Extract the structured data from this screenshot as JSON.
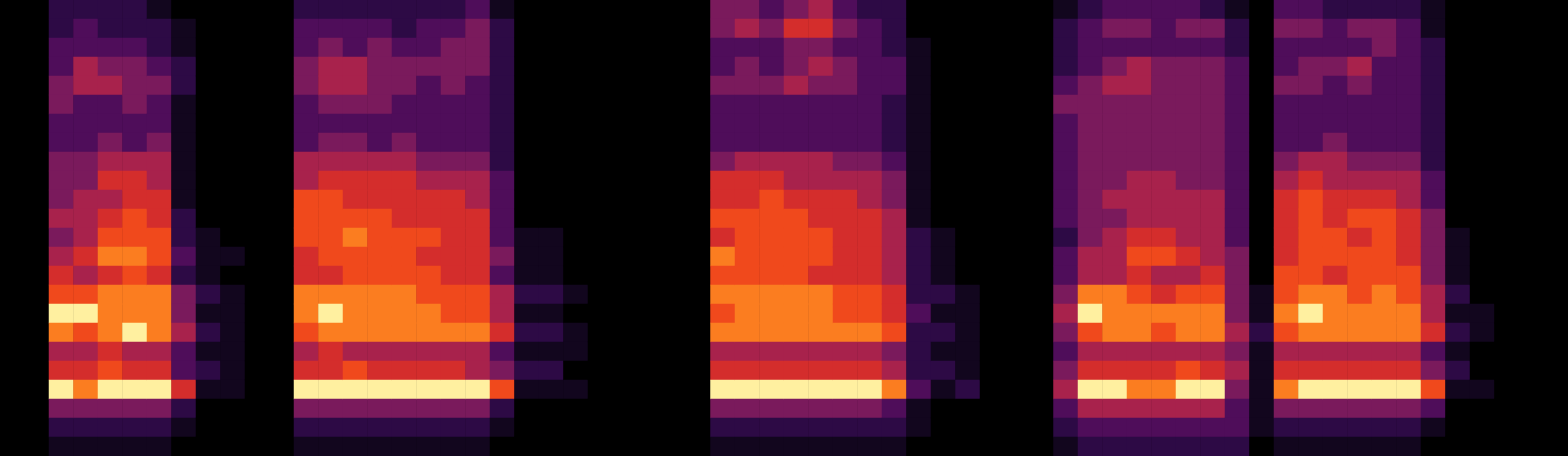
{
  "chart_data": {
    "type": "heatmap",
    "tick_labels": false,
    "grid": false,
    "color_range": [
      0,
      9
    ],
    "cells": [
      [
        0,
        0,
        0,
        0,
        0,
        0,
        0,
        0,
        0,
        0,
        0,
        0,
        0,
        0,
        0,
        0,
        0,
        0,
        0,
        0,
        0,
        0,
        0,
        0
      ],
      [
        0,
        0,
        0,
        0,
        0,
        0,
        0,
        0,
        0,
        0,
        0,
        0,
        0,
        0,
        0,
        0,
        0,
        0,
        0,
        0,
        0,
        0,
        0,
        0
      ],
      [
        2,
        2,
        3,
        3,
        4,
        4,
        3,
        3,
        4,
        4,
        4,
        5,
        4,
        5,
        6,
        7,
        9,
        8,
        5,
        6,
        9,
        4,
        2,
        1
      ],
      [
        2,
        3,
        3,
        5,
        5,
        3,
        3,
        3,
        4,
        4,
        5,
        5,
        5,
        6,
        5,
        7,
        9,
        7,
        5,
        6,
        8,
        4,
        2,
        1
      ],
      [
        2,
        2,
        3,
        4,
        5,
        3,
        3,
        4,
        5,
        6,
        5,
        6,
        7,
        8,
        6,
        8,
        8,
        8,
        6,
        7,
        9,
        4,
        2,
        1
      ],
      [
        2,
        2,
        3,
        4,
        4,
        4,
        3,
        3,
        5,
        6,
        6,
        7,
        7,
        8,
        7,
        8,
        8,
        9,
        5,
        6,
        9,
        4,
        2,
        1
      ],
      [
        1,
        2,
        2,
        3,
        4,
        3,
        3,
        4,
        5,
        5,
        6,
        6,
        7,
        7,
        6,
        8,
        8,
        8,
        5,
        6,
        9,
        4,
        2,
        1
      ],
      [
        0,
        1,
        1,
        2,
        2,
        1,
        1,
        1,
        1,
        1,
        1,
        2,
        2,
        3,
        2,
        4,
        4,
        5,
        3,
        3,
        6,
        2,
        1,
        0
      ],
      [
        0,
        0,
        0,
        0,
        0,
        0,
        0,
        0,
        0,
        0,
        0,
        0,
        1,
        1,
        1,
        2,
        1,
        2,
        1,
        2,
        1,
        0,
        0,
        0
      ],
      [
        0,
        0,
        0,
        0,
        0,
        0,
        0,
        0,
        0,
        0,
        0,
        0,
        0,
        1,
        0,
        1,
        1,
        1,
        1,
        1,
        1,
        0,
        0,
        0
      ],
      [
        0,
        0,
        0,
        0,
        0,
        0,
        0,
        0,
        0,
        0,
        0,
        0,
        0,
        0,
        0,
        0,
        0,
        0,
        0,
        0,
        0,
        0,
        0,
        0
      ],
      [
        0,
        0,
        0,
        0,
        0,
        0,
        0,
        0,
        0,
        0,
        0,
        0,
        0,
        0,
        0,
        0,
        0,
        0,
        0,
        0,
        0,
        0,
        0,
        0
      ],
      [
        2,
        3,
        3,
        4,
        4,
        3,
        3,
        3,
        5,
        5,
        7,
        7,
        7,
        6,
        6,
        8,
        8,
        7,
        5,
        6,
        9,
        4,
        2,
        1
      ],
      [
        2,
        3,
        4,
        5,
        5,
        4,
        3,
        4,
        5,
        6,
        7,
        7,
        7,
        7,
        6,
        8,
        9,
        8,
        6,
        6,
        9,
        4,
        2,
        1
      ],
      [
        2,
        3,
        3,
        5,
        5,
        4,
        3,
        4,
        5,
        6,
        6,
        7,
        8,
        7,
        7,
        8,
        8,
        8,
        5,
        7,
        9,
        4,
        2,
        1
      ],
      [
        2,
        3,
        4,
        4,
        4,
        4,
        3,
        3,
        5,
        6,
        6,
        7,
        7,
        7,
        7,
        8,
        8,
        8,
        5,
        6,
        9,
        4,
        2,
        1
      ],
      [
        2,
        2,
        3,
        4,
        4,
        3,
        3,
        4,
        5,
        6,
        6,
        6,
        7,
        7,
        7,
        8,
        8,
        8,
        5,
        6,
        9,
        4,
        2,
        1
      ],
      [
        2,
        3,
        3,
        4,
        3,
        3,
        3,
        3,
        4,
        5,
        6,
        6,
        7,
        6,
        7,
        7,
        8,
        8,
        5,
        6,
        9,
        4,
        2,
        1
      ],
      [
        2,
        3,
        4,
        4,
        4,
        3,
        3,
        3,
        4,
        5,
        6,
        6,
        6,
        6,
        6,
        7,
        7,
        8,
        5,
        6,
        9,
        4,
        2,
        1
      ],
      [
        3,
        4,
        4,
        4,
        3,
        3,
        3,
        3,
        4,
        5,
        5,
        6,
        6,
        6,
        6,
        7,
        7,
        8,
        5,
        5,
        9,
        4,
        2,
        1
      ],
      [
        1,
        2,
        2,
        2,
        2,
        2,
        2,
        2,
        2,
        3,
        3,
        3,
        3,
        4,
        3,
        5,
        5,
        6,
        3,
        4,
        7,
        2,
        1,
        0
      ],
      [
        0,
        0,
        0,
        0,
        0,
        0,
        0,
        0,
        0,
        0,
        0,
        0,
        1,
        1,
        1,
        2,
        1,
        2,
        1,
        2,
        1,
        0,
        0,
        0
      ],
      [
        0,
        0,
        0,
        0,
        0,
        0,
        0,
        0,
        0,
        0,
        0,
        0,
        1,
        1,
        1,
        2,
        1,
        2,
        1,
        2,
        1,
        0,
        0,
        0
      ],
      [
        0,
        0,
        0,
        0,
        0,
        0,
        0,
        0,
        0,
        0,
        0,
        0,
        0,
        0,
        0,
        1,
        0,
        1,
        1,
        0,
        1,
        0,
        0,
        0
      ],
      [
        0,
        0,
        0,
        0,
        0,
        0,
        0,
        0,
        0,
        0,
        0,
        0,
        0,
        0,
        0,
        0,
        0,
        0,
        0,
        0,
        0,
        0,
        0,
        0
      ],
      [
        0,
        0,
        0,
        0,
        0,
        0,
        0,
        0,
        0,
        0,
        0,
        0,
        0,
        0,
        0,
        0,
        0,
        0,
        0,
        0,
        0,
        0,
        0,
        0
      ],
      [
        0,
        0,
        0,
        0,
        0,
        0,
        0,
        0,
        0,
        0,
        0,
        0,
        0,
        0,
        0,
        0,
        0,
        0,
        0,
        0,
        0,
        0,
        0,
        0
      ],
      [
        0,
        0,
        0,
        0,
        0,
        0,
        0,
        0,
        0,
        0,
        0,
        0,
        0,
        0,
        0,
        0,
        0,
        0,
        0,
        0,
        0,
        0,
        0,
        0
      ],
      [
        0,
        0,
        0,
        0,
        0,
        0,
        0,
        0,
        0,
        0,
        0,
        0,
        0,
        0,
        0,
        0,
        0,
        0,
        0,
        0,
        0,
        0,
        0,
        0
      ],
      [
        4,
        4,
        3,
        3,
        4,
        3,
        3,
        3,
        4,
        6,
        6,
        7,
        6,
        8,
        7,
        8,
        7,
        8,
        5,
        6,
        9,
        4,
        2,
        1
      ],
      [
        4,
        5,
        3,
        4,
        4,
        3,
        3,
        3,
        5,
        6,
        6,
        7,
        7,
        7,
        7,
        8,
        8,
        8,
        5,
        6,
        9,
        4,
        2,
        1
      ],
      [
        3,
        4,
        3,
        3,
        4,
        3,
        3,
        3,
        5,
        6,
        7,
        7,
        7,
        7,
        7,
        8,
        8,
        8,
        5,
        6,
        9,
        4,
        2,
        1
      ],
      [
        4,
        6,
        4,
        4,
        5,
        3,
        3,
        3,
        5,
        5,
        6,
        7,
        7,
        7,
        7,
        8,
        8,
        8,
        5,
        6,
        9,
        4,
        2,
        1
      ],
      [
        5,
        6,
        4,
        5,
        4,
        3,
        3,
        3,
        5,
        5,
        6,
        6,
        7,
        7,
        6,
        8,
        8,
        8,
        5,
        6,
        9,
        4,
        2,
        1
      ],
      [
        3,
        4,
        3,
        4,
        4,
        3,
        3,
        3,
        4,
        5,
        6,
        6,
        6,
        6,
        6,
        7,
        7,
        8,
        5,
        6,
        9,
        4,
        2,
        1
      ],
      [
        2,
        3,
        3,
        3,
        3,
        3,
        3,
        3,
        4,
        5,
        5,
        6,
        6,
        6,
        6,
        7,
        7,
        8,
        5,
        6,
        9,
        4,
        2,
        1
      ],
      [
        2,
        2,
        2,
        3,
        3,
        2,
        2,
        2,
        3,
        4,
        4,
        5,
        5,
        5,
        5,
        6,
        6,
        7,
        4,
        5,
        8,
        3,
        2,
        1
      ],
      [
        0,
        0,
        1,
        1,
        1,
        1,
        1,
        1,
        1,
        1,
        1,
        1,
        2,
        2,
        2,
        2,
        3,
        2,
        2,
        2,
        3,
        1,
        1,
        0
      ],
      [
        0,
        0,
        0,
        0,
        0,
        0,
        0,
        0,
        0,
        0,
        0,
        0,
        1,
        1,
        1,
        2,
        1,
        2,
        1,
        2,
        1,
        0,
        0,
        0
      ],
      [
        0,
        0,
        0,
        0,
        0,
        0,
        0,
        0,
        0,
        0,
        0,
        0,
        0,
        0,
        0,
        1,
        1,
        1,
        1,
        1,
        2,
        0,
        0,
        0
      ],
      [
        0,
        0,
        0,
        0,
        0,
        0,
        0,
        0,
        0,
        0,
        0,
        0,
        0,
        0,
        0,
        0,
        0,
        0,
        0,
        0,
        0,
        0,
        0,
        0
      ],
      [
        0,
        0,
        0,
        0,
        0,
        0,
        0,
        0,
        0,
        0,
        0,
        0,
        0,
        0,
        0,
        0,
        0,
        0,
        0,
        0,
        0,
        0,
        0,
        0
      ],
      [
        0,
        0,
        0,
        0,
        0,
        0,
        0,
        0,
        0,
        0,
        0,
        0,
        0,
        0,
        0,
        0,
        0,
        0,
        0,
        0,
        0,
        0,
        0,
        0
      ],
      [
        1,
        2,
        2,
        2,
        3,
        4,
        3,
        3,
        3,
        3,
        3,
        3,
        2,
        3,
        3,
        4,
        5,
        4,
        3,
        4,
        5,
        3,
        2,
        1
      ],
      [
        2,
        3,
        3,
        3,
        4,
        4,
        4,
        4,
        4,
        4,
        4,
        4,
        4,
        5,
        5,
        8,
        9,
        7,
        5,
        6,
        9,
        5,
        3,
        2
      ],
      [
        3,
        4,
        3,
        4,
        5,
        4,
        4,
        4,
        4,
        4,
        5,
        4,
        5,
        5,
        5,
        8,
        8,
        8,
        5,
        6,
        9,
        5,
        3,
        2
      ],
      [
        3,
        4,
        3,
        5,
        5,
        4,
        4,
        4,
        4,
        5,
        5,
        5,
        6,
        7,
        6,
        7,
        8,
        8,
        5,
        6,
        8,
        5,
        3,
        2
      ],
      [
        3,
        3,
        3,
        4,
        4,
        4,
        4,
        4,
        4,
        5,
        5,
        5,
        6,
        7,
        5,
        6,
        8,
        7,
        5,
        6,
        8,
        5,
        3,
        2
      ],
      [
        3,
        4,
        3,
        4,
        4,
        4,
        4,
        4,
        4,
        4,
        5,
        5,
        5,
        6,
        5,
        7,
        8,
        8,
        5,
        7,
        9,
        5,
        3,
        2
      ],
      [
        2,
        4,
        3,
        4,
        4,
        4,
        4,
        4,
        4,
        4,
        5,
        5,
        5,
        5,
        6,
        7,
        8,
        8,
        5,
        6,
        9,
        5,
        3,
        2
      ],
      [
        1,
        2,
        2,
        3,
        3,
        3,
        3,
        3,
        3,
        3,
        3,
        3,
        3,
        4,
        4,
        4,
        4,
        5,
        4,
        5,
        4,
        3,
        3,
        2
      ],
      [
        0,
        0,
        0,
        0,
        0,
        0,
        0,
        0,
        0,
        0,
        0,
        0,
        0,
        0,
        0,
        1,
        1,
        2,
        1,
        1,
        1,
        1,
        1,
        0
      ],
      [
        3,
        4,
        3,
        3,
        4,
        3,
        3,
        3,
        4,
        5,
        6,
        6,
        6,
        6,
        7,
        7,
        8,
        7,
        5,
        6,
        8,
        4,
        2,
        1
      ],
      [
        3,
        4,
        3,
        4,
        4,
        3,
        3,
        3,
        5,
        6,
        7,
        7,
        7,
        7,
        7,
        8,
        9,
        8,
        5,
        6,
        9,
        4,
        2,
        1
      ],
      [
        2,
        3,
        3,
        4,
        3,
        3,
        3,
        4,
        5,
        5,
        6,
        6,
        7,
        7,
        6,
        8,
        8,
        8,
        5,
        6,
        9,
        4,
        2,
        1
      ],
      [
        2,
        4,
        3,
        5,
        4,
        3,
        3,
        3,
        4,
        5,
        6,
        7,
        6,
        7,
        7,
        7,
        8,
        8,
        5,
        6,
        9,
        4,
        2,
        1
      ],
      [
        2,
        4,
        4,
        3,
        3,
        3,
        3,
        3,
        4,
        5,
        6,
        7,
        7,
        7,
        7,
        8,
        8,
        8,
        5,
        6,
        9,
        4,
        2,
        1
      ],
      [
        2,
        3,
        3,
        3,
        3,
        3,
        3,
        3,
        4,
        5,
        5,
        6,
        6,
        6,
        7,
        7,
        8,
        8,
        5,
        6,
        9,
        4,
        2,
        1
      ],
      [
        1,
        1,
        2,
        2,
        2,
        2,
        2,
        2,
        2,
        3,
        3,
        4,
        4,
        4,
        4,
        5,
        5,
        6,
        3,
        4,
        7,
        3,
        1,
        0
      ],
      [
        0,
        0,
        0,
        0,
        0,
        0,
        0,
        0,
        0,
        0,
        0,
        0,
        1,
        1,
        1,
        2,
        1,
        2,
        1,
        2,
        1,
        0,
        0,
        0
      ],
      [
        0,
        0,
        0,
        0,
        0,
        0,
        0,
        0,
        0,
        0,
        0,
        0,
        0,
        0,
        0,
        0,
        1,
        1,
        0,
        0,
        1,
        0,
        0,
        0
      ],
      [
        0,
        0,
        0,
        0,
        0,
        0,
        0,
        0,
        0,
        0,
        0,
        0,
        0,
        0,
        0,
        0,
        0,
        0,
        0,
        0,
        0,
        0,
        0,
        0
      ],
      [
        0,
        0,
        0,
        0,
        0,
        0,
        0,
        0,
        0,
        0,
        0,
        0,
        0,
        0,
        0,
        0,
        0,
        0,
        0,
        0,
        0,
        0,
        0,
        0
      ],
      [
        0,
        0,
        0,
        0,
        0,
        0,
        0,
        0,
        0,
        0,
        0,
        0,
        0,
        0,
        0,
        0,
        0,
        0,
        0,
        0,
        0,
        0,
        0,
        0
      ]
    ]
  }
}
